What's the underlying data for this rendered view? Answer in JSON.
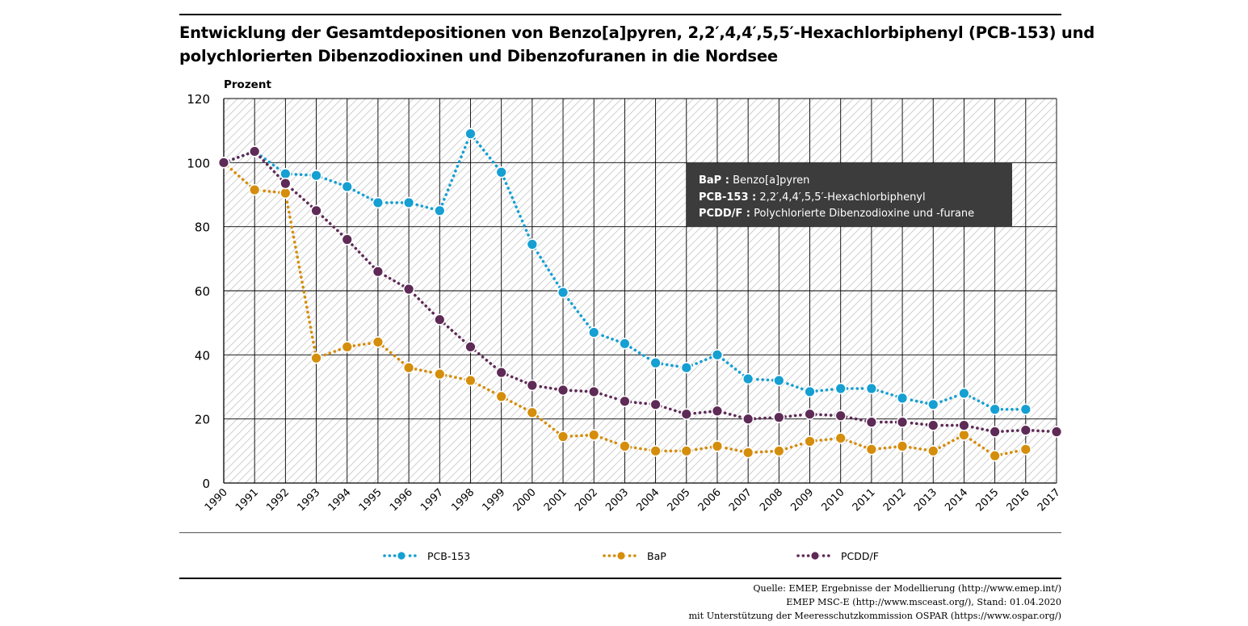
{
  "title": {
    "line1": "Entwicklung der Gesamtdepositionen von Benzo[a]pyren, 2,2′,4,4′,5,5′-Hexachlorbiphenyl (PCB-153) und",
    "line2": "polychlorierten Dibenzodioxinen und Dibenzofuranen in die Nordsee"
  },
  "info_box": {
    "bap_abbr": "BaP :",
    "bap_text": "Benzo[a]pyren",
    "pcb_abbr": "PCB-153 :",
    "pcb_text": "2,2′,4,4′,5,5′-Hexachlorbiphenyl",
    "pcdd_abbr": "PCDD/F :",
    "pcdd_text": "Polychlorierte Dibenzodioxine und -furane"
  },
  "source": {
    "line1": "Quelle: EMEP, Ergebnisse der Modellierung (http://www.emep.int/)",
    "line2": "EMEP MSC-E (http://www.msceast.org/), Stand: 01.04.2020",
    "line3": "mit Unterstützung der Meeresschutzkommission OSPAR (https://www.ospar.org/)"
  },
  "colors": {
    "pcb": "#159fd2",
    "bap": "#d58d0c",
    "pcdd": "#5e2a56",
    "grid": "#000000",
    "hatch": "#c8c8c8"
  },
  "chart_data": {
    "type": "line",
    "ylabel": "Prozent",
    "ylim": [
      0,
      120
    ],
    "yticks": [
      0,
      20,
      40,
      60,
      80,
      100,
      120
    ],
    "grid": true,
    "legend_position": "bottom",
    "x": [
      "1990",
      "1991",
      "1992",
      "1993",
      "1994",
      "1995",
      "1996",
      "1997",
      "1998",
      "1999",
      "2000",
      "2001",
      "2002",
      "2003",
      "2004",
      "2005",
      "2006",
      "2007",
      "2008",
      "2009",
      "2010",
      "2011",
      "2012",
      "2013",
      "2014",
      "2015",
      "2016",
      "2017"
    ],
    "series": [
      {
        "name": "PCB-153",
        "key": "pcb",
        "values": [
          100,
          103.5,
          96.5,
          96,
          92.5,
          87.5,
          87.5,
          85,
          109,
          97,
          74.5,
          59.5,
          47,
          43.5,
          37.5,
          36,
          40,
          32.5,
          32,
          28.5,
          29.5,
          29.5,
          26.5,
          24.5,
          28,
          23,
          23,
          null
        ]
      },
      {
        "name": "BaP",
        "key": "bap",
        "values": [
          100,
          91.5,
          90.5,
          39,
          42.5,
          44,
          36,
          34,
          32,
          27,
          22,
          14.5,
          15,
          11.5,
          10,
          10,
          11.5,
          9.5,
          10,
          13,
          14,
          10.5,
          11.5,
          10,
          15,
          8.5,
          10.5,
          null
        ]
      },
      {
        "name": "PCDD/F",
        "key": "pcdd",
        "values": [
          100,
          103.5,
          93.5,
          85,
          76,
          66,
          60.5,
          51,
          42.5,
          34.5,
          30.5,
          29,
          28.5,
          25.5,
          24.5,
          21.5,
          22.5,
          20,
          20.5,
          21.5,
          21,
          19,
          19,
          18,
          18,
          16,
          16.5,
          16
        ]
      }
    ]
  }
}
